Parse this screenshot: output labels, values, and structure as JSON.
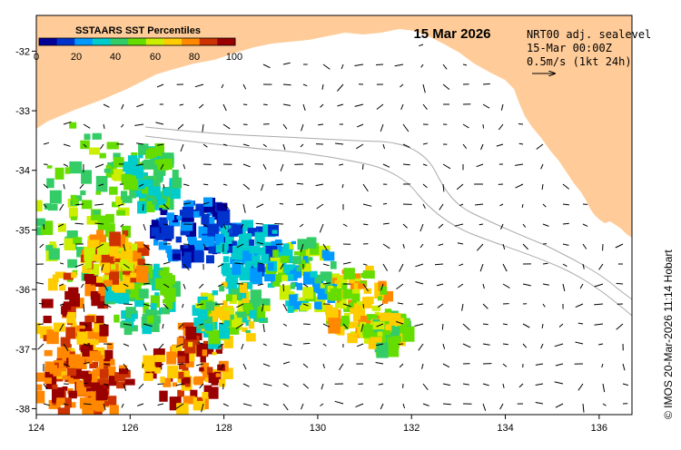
{
  "map": {
    "title": "15 Mar 2026",
    "info_lines": [
      "NRT00 adj. sealevel",
      "15-Mar 00:00Z",
      "0.5m/s (1kt 24h)"
    ],
    "credit": "© IMOS 20-Mar-2026 11:14 Hobart",
    "lon_ticks": [
      "124",
      "126",
      "128",
      "130",
      "132",
      "134",
      "136"
    ],
    "lon_values": [
      124,
      126,
      128,
      130,
      132,
      134,
      136
    ],
    "lat_ticks": [
      "-32",
      "-33",
      "-34",
      "-35",
      "-36",
      "-37",
      "-38"
    ],
    "lat_values": [
      -32,
      -33,
      -34,
      -35,
      -36,
      -37,
      -38
    ],
    "lon_range": [
      124,
      136.7
    ],
    "lat_range": [
      -38.1,
      -31.4
    ],
    "colors": {
      "land": "#FFCC99",
      "ocean": "#FFFFFF",
      "bathymetry": "#AAAAAA"
    }
  },
  "colorbar": {
    "title": "SSTAARS SST Percentiles",
    "labels": [
      "0",
      "20",
      "40",
      "60",
      "80",
      "100"
    ],
    "colors": [
      "#000099",
      "#0033CC",
      "#0099FF",
      "#00CCCC",
      "#33CC66",
      "#66DD00",
      "#CCEE00",
      "#FFCC00",
      "#FF8800",
      "#CC3300",
      "#990000"
    ]
  }
}
